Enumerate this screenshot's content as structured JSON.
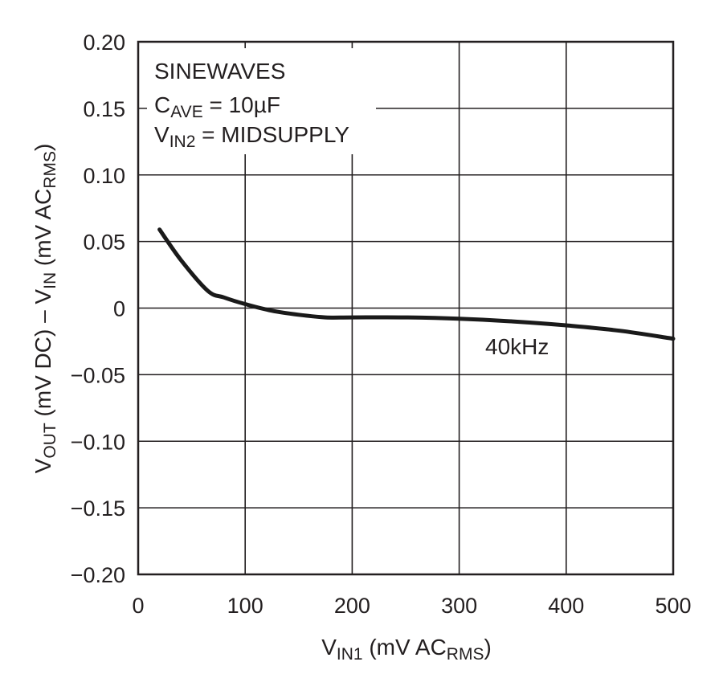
{
  "chart_data": {
    "type": "line",
    "xlim": [
      0,
      500
    ],
    "ylim": [
      -0.2,
      0.2
    ],
    "grid": true,
    "x_ticks": [
      "0",
      "100",
      "200",
      "300",
      "400",
      "500"
    ],
    "y_ticks": [
      "0.20",
      "0.15",
      "0.10",
      "0.05",
      "0",
      "−0.05",
      "−0.10",
      "−0.15",
      "−0.20"
    ],
    "xlabel": {
      "main": "V",
      "sub": "IN1",
      "rest": " (mV AC",
      "sub2": "RMS",
      "end": ")"
    },
    "ylabel": {
      "p1": "V",
      "s1": "OUT",
      "p2": " (mV DC) – V",
      "s2": "IN",
      "p3": " (mV AC",
      "s3": "RMS",
      "p4": ")"
    },
    "annotations": {
      "line1": "SINEWAVES",
      "line2": {
        "main": "C",
        "sub": "AVE",
        "rest": " = 10µF"
      },
      "line3": {
        "main": "V",
        "sub": "IN2",
        "rest": " = MIDSUPPLY"
      }
    },
    "series": [
      {
        "name": "40kHz",
        "x": [
          20,
          40,
          65,
          80,
          100,
          125,
          150,
          175,
          200,
          250,
          300,
          350,
          400,
          450,
          500
        ],
        "y": [
          0.059,
          0.036,
          0.013,
          0.008,
          0.003,
          -0.002,
          -0.005,
          -0.007,
          -0.007,
          -0.007,
          -0.008,
          -0.01,
          -0.013,
          -0.017,
          -0.023
        ]
      }
    ]
  }
}
